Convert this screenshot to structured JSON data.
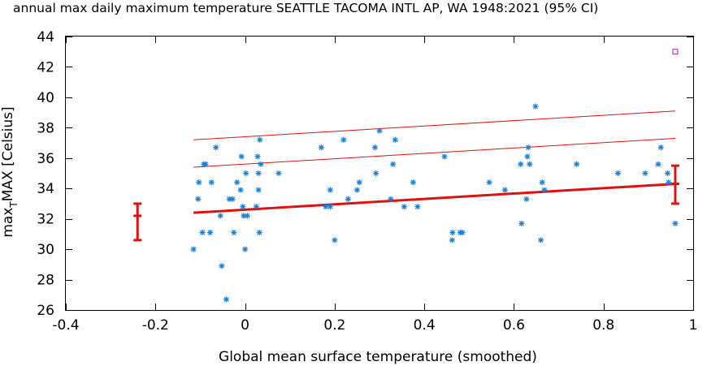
{
  "chart_data": {
    "type": "scatter",
    "title": "annual max daily maximum temperature SEATTLE TACOMA INTL AP, WA 1948:2021 (95% CI)",
    "xlabel": "Global mean surface temperature (smoothed)",
    "ylabel_parts": {
      "base": "max",
      "sub": "T",
      "rest": "MAX [Celsius]"
    },
    "xlim": [
      -0.4,
      1
    ],
    "ylim": [
      26,
      44
    ],
    "xticks": [
      -0.4,
      -0.2,
      0,
      0.2,
      0.4,
      0.6,
      0.8,
      1
    ],
    "xtick_labels": [
      "-0.4",
      "-0.2",
      "0",
      "0.2",
      "0.4",
      "0.6",
      "0.8",
      "1"
    ],
    "yticks": [
      26,
      28,
      30,
      32,
      34,
      36,
      38,
      40,
      42,
      44
    ],
    "ytick_labels": [
      "26",
      "28",
      "30",
      "32",
      "34",
      "36",
      "38",
      "40",
      "42",
      "44"
    ],
    "colors": {
      "points": "#1a7fd4",
      "fit": "#e01010",
      "errorbar": "#e01010",
      "outlier": "#b020b0"
    },
    "series": [
      {
        "name": "observations",
        "marker": "asterisk",
        "points": [
          [
            -0.115,
            30.0
          ],
          [
            -0.105,
            33.3
          ],
          [
            -0.103,
            34.4
          ],
          [
            -0.095,
            31.1
          ],
          [
            -0.092,
            35.6
          ],
          [
            -0.088,
            35.6
          ],
          [
            -0.078,
            31.1
          ],
          [
            -0.075,
            34.4
          ],
          [
            -0.065,
            36.7
          ],
          [
            -0.055,
            32.2
          ],
          [
            -0.052,
            28.9
          ],
          [
            -0.042,
            26.7
          ],
          [
            -0.035,
            33.3
          ],
          [
            -0.028,
            33.3
          ],
          [
            -0.025,
            31.1
          ],
          [
            -0.018,
            34.4
          ],
          [
            -0.01,
            33.9
          ],
          [
            -0.008,
            36.1
          ],
          [
            -0.005,
            32.8
          ],
          [
            -0.003,
            32.2
          ],
          [
            0.0,
            30.0
          ],
          [
            0.002,
            35.0
          ],
          [
            0.005,
            32.2
          ],
          [
            0.025,
            32.8
          ],
          [
            0.028,
            36.1
          ],
          [
            0.03,
            35.0
          ],
          [
            0.03,
            33.9
          ],
          [
            0.032,
            31.1
          ],
          [
            0.033,
            37.2
          ],
          [
            0.035,
            35.6
          ],
          [
            0.075,
            35.0
          ],
          [
            0.17,
            36.7
          ],
          [
            0.18,
            32.8
          ],
          [
            0.19,
            32.8
          ],
          [
            0.19,
            33.9
          ],
          [
            0.2,
            30.6
          ],
          [
            0.22,
            37.2
          ],
          [
            0.23,
            33.3
          ],
          [
            0.25,
            33.9
          ],
          [
            0.255,
            34.4
          ],
          [
            0.29,
            36.7
          ],
          [
            0.292,
            35.0
          ],
          [
            0.3,
            37.8
          ],
          [
            0.325,
            33.3
          ],
          [
            0.33,
            35.6
          ],
          [
            0.335,
            37.2
          ],
          [
            0.355,
            32.8
          ],
          [
            0.375,
            34.4
          ],
          [
            0.385,
            32.8
          ],
          [
            0.445,
            36.1
          ],
          [
            0.462,
            30.6
          ],
          [
            0.463,
            31.1
          ],
          [
            0.48,
            31.1
          ],
          [
            0.485,
            31.1
          ],
          [
            0.545,
            34.4
          ],
          [
            0.58,
            33.9
          ],
          [
            0.615,
            35.6
          ],
          [
            0.617,
            31.7
          ],
          [
            0.628,
            33.3
          ],
          [
            0.63,
            36.1
          ],
          [
            0.632,
            36.7
          ],
          [
            0.635,
            35.6
          ],
          [
            0.648,
            39.4
          ],
          [
            0.66,
            30.6
          ],
          [
            0.663,
            34.4
          ],
          [
            0.668,
            33.9
          ],
          [
            0.74,
            35.6
          ],
          [
            0.832,
            35.0
          ],
          [
            0.893,
            35.0
          ],
          [
            0.922,
            35.6
          ],
          [
            0.928,
            36.7
          ],
          [
            0.943,
            35.0
          ],
          [
            0.945,
            34.4
          ],
          [
            0.96,
            31.7
          ]
        ]
      }
    ],
    "outlier": {
      "x": 0.96,
      "y": 43.0,
      "marker": "square"
    },
    "fit_lines": [
      {
        "name": "mean fit",
        "x": [
          -0.115,
          0.96
        ],
        "y": [
          32.4,
          34.3
        ],
        "style": "thick"
      },
      {
        "name": "return level (lower)",
        "x": [
          -0.115,
          0.96
        ],
        "y": [
          35.4,
          37.3
        ],
        "style": "thin"
      },
      {
        "name": "return level (upper)",
        "x": [
          -0.115,
          0.96
        ],
        "y": [
          37.2,
          39.1
        ],
        "style": "thin"
      }
    ],
    "error_bars": [
      {
        "x": -0.24,
        "y": 32.2,
        "low": 30.6,
        "high": 33.0
      },
      {
        "x": 0.96,
        "y": 34.3,
        "low": 33.0,
        "high": 35.5
      }
    ]
  }
}
